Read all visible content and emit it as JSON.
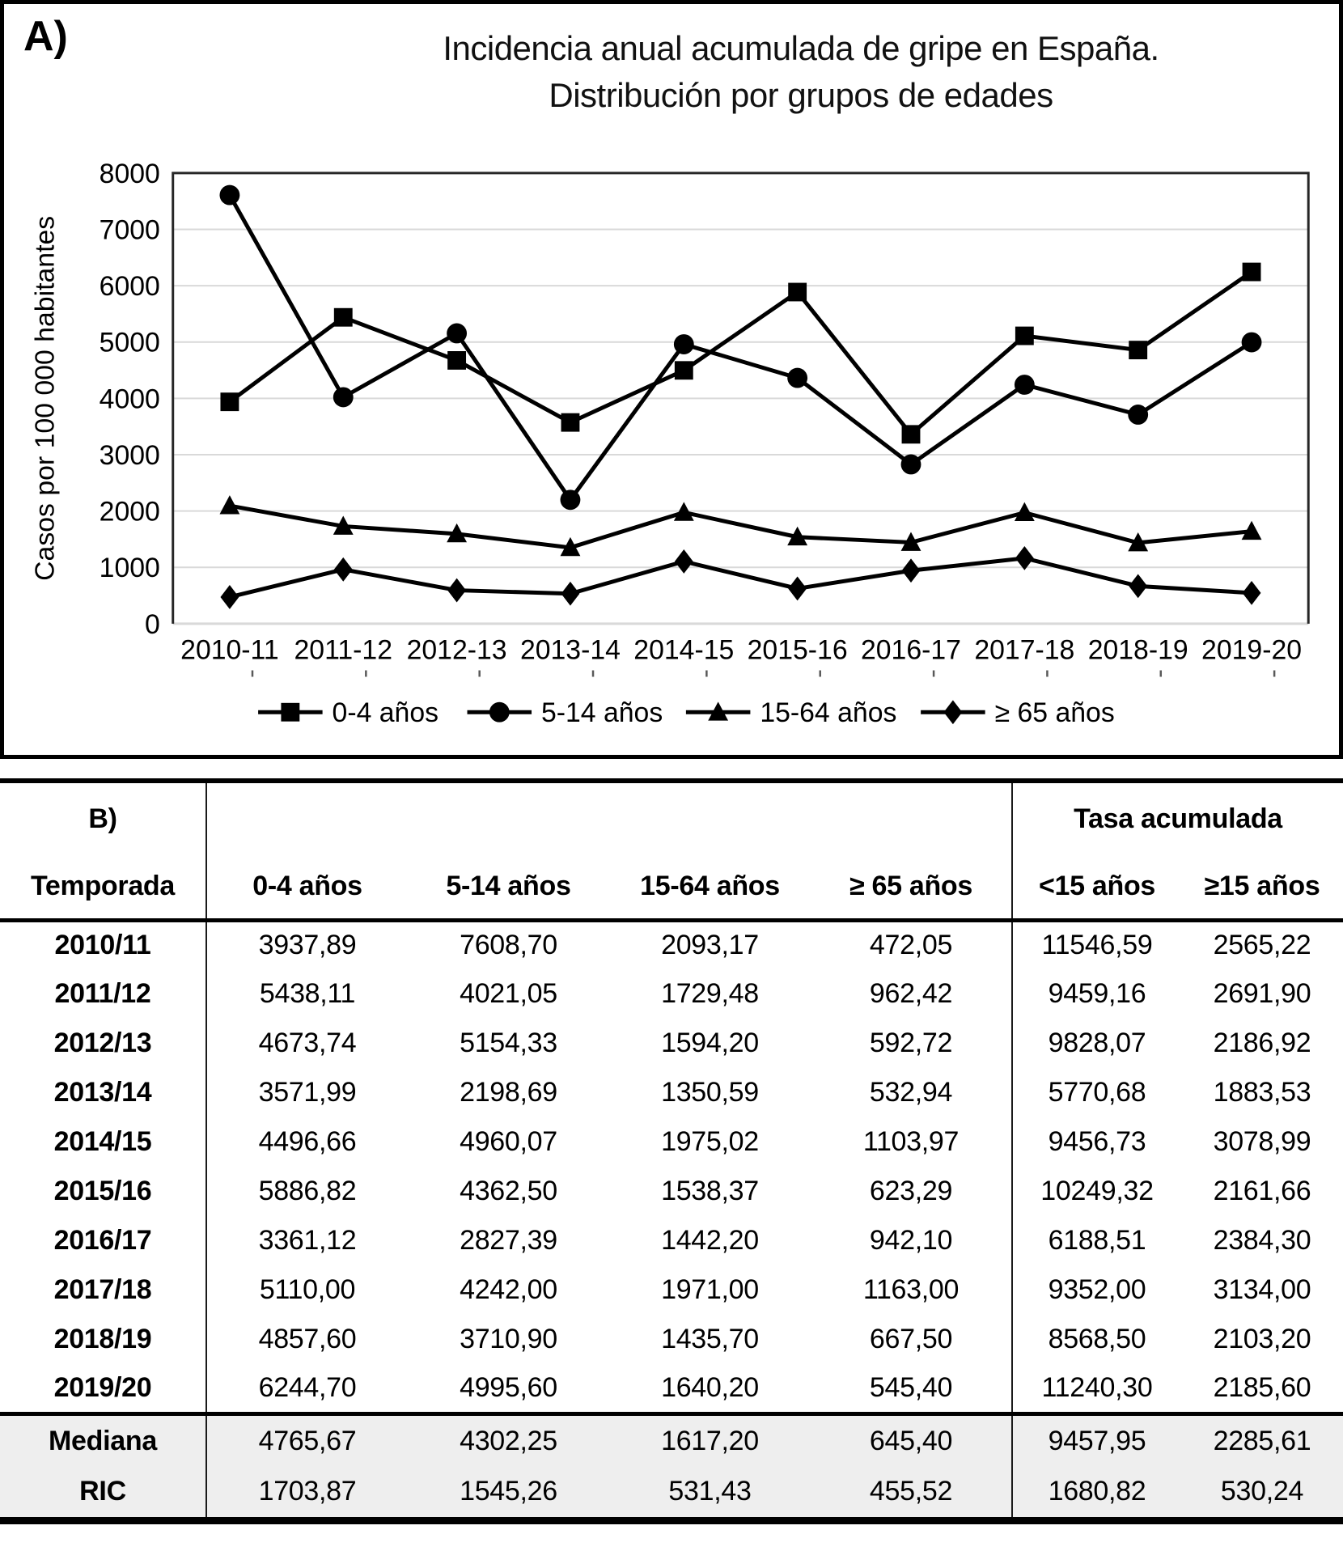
{
  "panel_a": {
    "label": "A)",
    "title_line1": "Incidencia anual acumulada de gripe en España.",
    "title_line2": "Distribución por grupos de edades"
  },
  "chart_data": {
    "type": "line",
    "title": "Incidencia anual acumulada de gripe en España. Distribución por grupos de edades",
    "xlabel": "",
    "ylabel": "Casos por 100 000 habitantes",
    "ylim": [
      0,
      8000
    ],
    "ytick_step": 1000,
    "grid": true,
    "legend_position": "bottom",
    "categories": [
      "2010-11",
      "2011-12",
      "2012-13",
      "2013-14",
      "2014-15",
      "2015-16",
      "2016-17",
      "2017-18",
      "2018-19",
      "2019-20"
    ],
    "series": [
      {
        "name": "0-4 años",
        "marker": "square",
        "values": [
          3937.89,
          5438.11,
          4673.74,
          3571.99,
          4496.66,
          5886.82,
          3361.12,
          5110.0,
          4857.6,
          6244.7
        ]
      },
      {
        "name": "5-14 años",
        "marker": "circle",
        "values": [
          7608.7,
          4021.05,
          5154.33,
          2198.69,
          4960.07,
          4362.5,
          2827.39,
          4242.0,
          3710.9,
          4995.6
        ]
      },
      {
        "name": "15-64 años",
        "marker": "triangle",
        "values": [
          2093.17,
          1729.48,
          1594.2,
          1350.59,
          1975.02,
          1538.37,
          1442.2,
          1971.0,
          1435.7,
          1640.2
        ]
      },
      {
        "name": "≥ 65 años",
        "marker": "diamond",
        "values": [
          472.05,
          962.42,
          592.72,
          532.94,
          1103.97,
          623.29,
          942.1,
          1163.0,
          667.5,
          545.4
        ]
      }
    ],
    "colors": {
      "line": "#000000",
      "grid": "#d9d9d9",
      "axis": "#262626",
      "tick": "#595959"
    }
  },
  "panel_b": {
    "label": "B)",
    "group_header": "Tasa acumulada",
    "columns": [
      "Temporada",
      "0-4 años",
      "5-14 años",
      "15-64 años",
      "≥ 65 años",
      "<15 años",
      "≥15 años"
    ],
    "rows": [
      {
        "label": "2010/11",
        "values": [
          "3937,89",
          "7608,70",
          "2093,17",
          "472,05",
          "11546,59",
          "2565,22"
        ]
      },
      {
        "label": "2011/12",
        "values": [
          "5438,11",
          "4021,05",
          "1729,48",
          "962,42",
          "9459,16",
          "2691,90"
        ]
      },
      {
        "label": "2012/13",
        "values": [
          "4673,74",
          "5154,33",
          "1594,20",
          "592,72",
          "9828,07",
          "2186,92"
        ]
      },
      {
        "label": "2013/14",
        "values": [
          "3571,99",
          "2198,69",
          "1350,59",
          "532,94",
          "5770,68",
          "1883,53"
        ]
      },
      {
        "label": "2014/15",
        "values": [
          "4496,66",
          "4960,07",
          "1975,02",
          "1103,97",
          "9456,73",
          "3078,99"
        ]
      },
      {
        "label": "2015/16",
        "values": [
          "5886,82",
          "4362,50",
          "1538,37",
          "623,29",
          "10249,32",
          "2161,66"
        ]
      },
      {
        "label": "2016/17",
        "values": [
          "3361,12",
          "2827,39",
          "1442,20",
          "942,10",
          "6188,51",
          "2384,30"
        ]
      },
      {
        "label": "2017/18",
        "values": [
          "5110,00",
          "4242,00",
          "1971,00",
          "1163,00",
          "9352,00",
          "3134,00"
        ]
      },
      {
        "label": "2018/19",
        "values": [
          "4857,60",
          "3710,90",
          "1435,70",
          "667,50",
          "8568,50",
          "2103,20"
        ]
      },
      {
        "label": "2019/20",
        "values": [
          "6244,70",
          "4995,60",
          "1640,20",
          "545,40",
          "11240,30",
          "2185,60"
        ]
      }
    ],
    "summary_rows": [
      {
        "label": "Mediana",
        "values": [
          "4765,67",
          "4302,25",
          "1617,20",
          "645,40",
          "9457,95",
          "2285,61"
        ]
      },
      {
        "label": "RIC",
        "values": [
          "1703,87",
          "1545,26",
          "531,43",
          "455,52",
          "1680,82",
          "530,24"
        ]
      }
    ]
  }
}
